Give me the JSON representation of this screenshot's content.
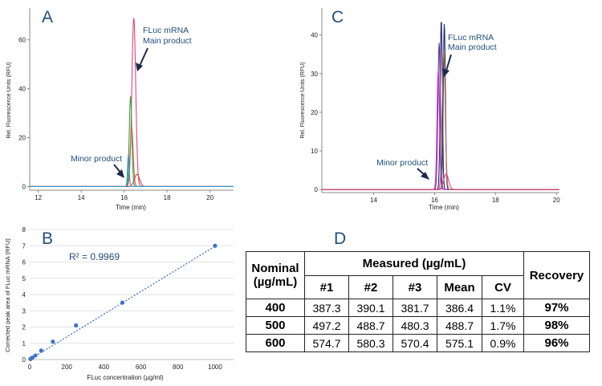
{
  "colors": {
    "pink": "#e0457a",
    "green": "#3ba03b",
    "brown": "#b07048",
    "red": "#d84040",
    "cyan": "#2aa0d8",
    "navy": "#1c2a6e",
    "violet": "#7a2ea6",
    "magenta": "#c03ad8",
    "fit": "#4472c4",
    "annot": "#1f4e79"
  },
  "panels": {
    "a": "A",
    "b": "B",
    "c": "C",
    "d": "D"
  },
  "chart_data": [
    {
      "id": "A",
      "type": "line",
      "xlabel": "Time (min)",
      "ylabel": "Rel. Fluorescence Units (RFU)",
      "xlim": [
        11.6,
        21.1
      ],
      "ylim": [
        -1.5,
        73
      ],
      "xticks": [
        12,
        14,
        16,
        18,
        20
      ],
      "yticks": [
        0,
        20,
        40,
        60
      ],
      "series": [
        {
          "color": "pink",
          "center": 16.45,
          "height": 69,
          "width": 0.09
        },
        {
          "color": "green",
          "center": 16.3,
          "height": 37,
          "width": 0.06
        },
        {
          "color": "brown",
          "center": 16.35,
          "height": 24,
          "width": 0.07
        },
        {
          "color": "red",
          "center": 16.6,
          "height": 5,
          "width": 0.12
        },
        {
          "color": "cyan",
          "center": 16.2,
          "height": 13,
          "width": 0.04
        }
      ],
      "annotations": [
        {
          "line1": "FLuc mRNA",
          "line2": "Main product"
        },
        {
          "line1": "Minor product"
        }
      ]
    },
    {
      "id": "C",
      "type": "line",
      "xlabel": "Time (min)",
      "ylabel": "Rel. Fluorescence Units (RFU)",
      "xlim": [
        12.3,
        20.1
      ],
      "ylim": [
        -0.8,
        47
      ],
      "xticks": [
        14,
        16,
        18,
        20
      ],
      "yticks": [
        0,
        10,
        20,
        30,
        40
      ],
      "series": [
        {
          "color": "navy",
          "center": 16.22,
          "height": 44,
          "width": 0.035
        },
        {
          "color": "navy",
          "center": 16.32,
          "height": 43,
          "width": 0.035
        },
        {
          "color": "violet",
          "center": 16.15,
          "height": 38,
          "width": 0.04
        },
        {
          "color": "magenta",
          "center": 16.12,
          "height": 31,
          "width": 0.04
        },
        {
          "color": "brown",
          "center": 16.3,
          "height": 36,
          "width": 0.05
        },
        {
          "color": "pink",
          "center": 16.38,
          "height": 4,
          "width": 0.08
        }
      ],
      "annotations": [
        {
          "line1": "FLuc mRNA",
          "line2": "Main product"
        },
        {
          "line1": "Minor product"
        }
      ]
    },
    {
      "id": "B",
      "type": "scatter",
      "xlabel": "FLuc concentration (µg/ml)",
      "ylabel": "Corrected peak area of FLuc mRNA (RFU)",
      "xlim": [
        0,
        1100
      ],
      "ylim": [
        0,
        8
      ],
      "xticks": [
        0,
        200,
        400,
        600,
        800,
        1000
      ],
      "yticks": [
        0,
        1,
        2,
        3,
        4,
        5,
        6,
        7,
        8
      ],
      "x": [
        4,
        8,
        15,
        31,
        62,
        125,
        250,
        500,
        1000
      ],
      "y": [
        0.03,
        0.06,
        0.12,
        0.25,
        0.55,
        1.1,
        2.1,
        3.5,
        7.0
      ],
      "fit": {
        "slope": 0.00697,
        "intercept": 0.0
      },
      "r2": "R² = 0.9969"
    }
  ],
  "table": {
    "nominal_header": "Nominal (µg/mL)",
    "measured_header": "Measured (µg/mL)",
    "recovery_header": "Recovery",
    "subheaders": [
      "#1",
      "#2",
      "#3",
      "Mean",
      "CV"
    ],
    "rows": [
      {
        "nominal": "400",
        "values": [
          "387.3",
          "390.1",
          "381.7",
          "386.4",
          "1.1%"
        ],
        "recovery": "97%"
      },
      {
        "nominal": "500",
        "values": [
          "497.2",
          "488.7",
          "480.3",
          "488.7",
          "1.7%"
        ],
        "recovery": "98%"
      },
      {
        "nominal": "600",
        "values": [
          "574.7",
          "580.3",
          "570.4",
          "575.1",
          "0.9%"
        ],
        "recovery": "96%"
      }
    ]
  }
}
